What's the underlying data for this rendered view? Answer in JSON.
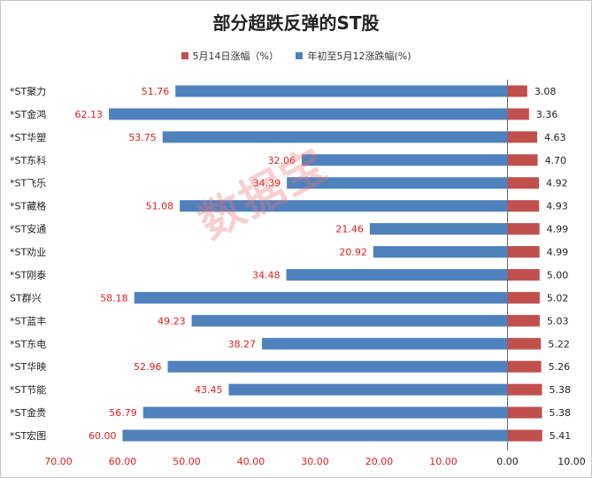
{
  "chart_data": {
    "type": "bar",
    "orientation": "horizontal",
    "title": "部分超跌反弹的ST股",
    "categories": [
      "*ST聚力",
      "*ST金鸿",
      "*ST华塑",
      "*ST东科",
      "*ST飞乐",
      "*ST藏格",
      "*ST安通",
      "*ST劝业",
      "*ST刚泰",
      "ST群兴",
      "*ST蓝丰",
      "*ST东电",
      "*ST华映",
      "*ST节能",
      "*ST金贵",
      "*ST宏图"
    ],
    "series": [
      {
        "name": "5月14日涨幅（%）",
        "color": "#c0504d",
        "values": [
          3.08,
          3.36,
          4.63,
          4.7,
          4.92,
          4.93,
          4.99,
          4.99,
          5.0,
          5.02,
          5.03,
          5.22,
          5.26,
          5.38,
          5.38,
          5.41
        ]
      },
      {
        "name": "年初至5月12涨跌幅(%)",
        "color": "#4f81bd",
        "values": [
          51.76,
          62.13,
          53.75,
          32.06,
          34.39,
          51.08,
          21.46,
          20.92,
          34.48,
          58.18,
          49.23,
          38.27,
          52.96,
          43.45,
          56.79,
          60.0
        ]
      }
    ],
    "xticks": [
      "70.00",
      "60.00",
      "50.00",
      "40.00",
      "30.00",
      "20.00",
      "10.00",
      "0.00",
      "10.00"
    ],
    "xlim": [
      -70,
      10
    ],
    "label_color": "#e02020",
    "legend_position": "top"
  },
  "watermark": "数据宝"
}
